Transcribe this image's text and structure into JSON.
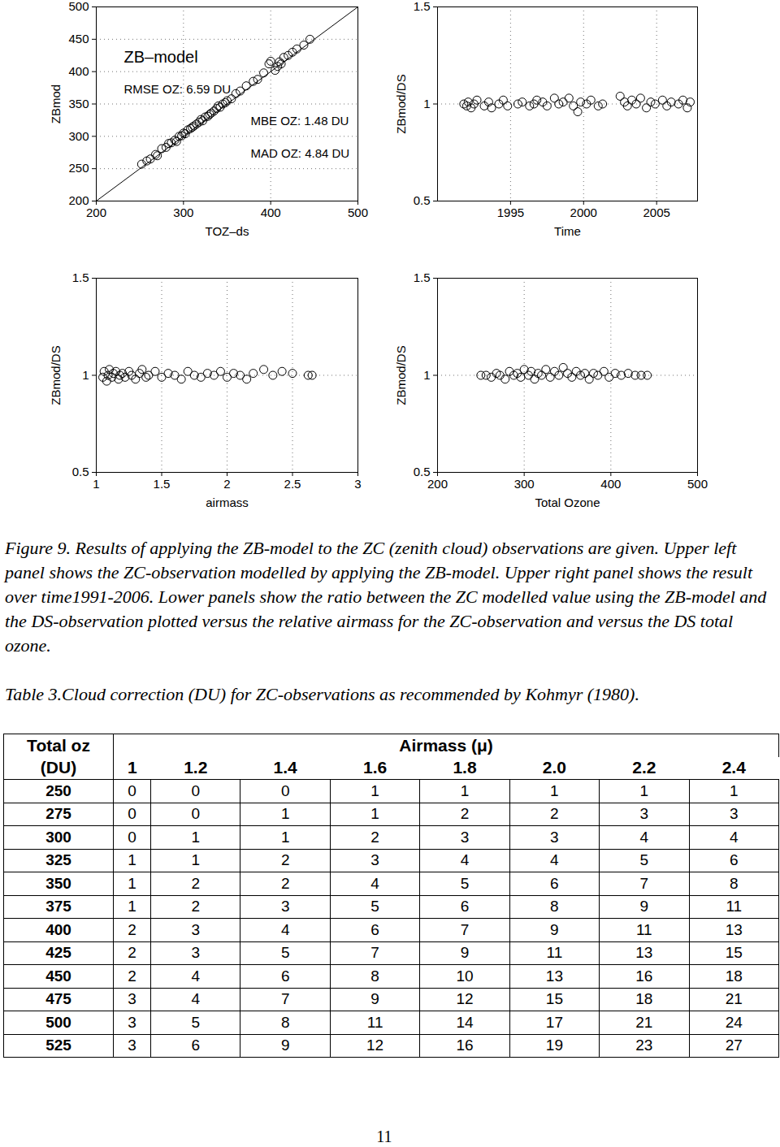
{
  "chart_data": [
    {
      "type": "scatter",
      "x_label": "TOZ–ds",
      "y_label": "ZBmod",
      "annotations": [
        "ZB–model",
        "RMSE OZ: 6.59 DU",
        "MBE OZ: 1.48 DU",
        "MAD OZ: 4.84 DU"
      ],
      "xlim": [
        200,
        500
      ],
      "ylim": [
        200,
        500
      ],
      "xticks": [
        200,
        300,
        400,
        500
      ],
      "yticks": [
        200,
        250,
        300,
        350,
        400,
        450,
        500
      ],
      "grid": true,
      "marker": "circle",
      "color": "#000000",
      "reference_line": {
        "x": [
          200,
          500
        ],
        "values": [
          200,
          500
        ]
      },
      "x": [
        252,
        258,
        262,
        268,
        270,
        275,
        280,
        283,
        286,
        290,
        292,
        295,
        298,
        300,
        302,
        305,
        308,
        310,
        312,
        315,
        318,
        320,
        322,
        325,
        328,
        330,
        332,
        335,
        338,
        340,
        342,
        345,
        348,
        350,
        355,
        360,
        365,
        372,
        380,
        385,
        392,
        398,
        400,
        405,
        408,
        410,
        412,
        415,
        420,
        425,
        430,
        438,
        445
      ],
      "values": [
        257,
        262,
        265,
        272,
        270,
        281,
        283,
        289,
        290,
        294,
        292,
        300,
        301,
        305,
        304,
        310,
        312,
        314,
        316,
        319,
        322,
        326,
        324,
        330,
        331,
        334,
        336,
        339,
        343,
        347,
        345,
        350,
        352,
        355,
        358,
        366,
        370,
        378,
        385,
        388,
        398,
        412,
        416,
        402,
        408,
        415,
        412,
        422,
        425,
        430,
        435,
        441,
        450
      ]
    },
    {
      "type": "scatter",
      "x_label": "Time",
      "y_label": "ZBmod/DS",
      "xlim": [
        1990,
        2007.8
      ],
      "ylim": [
        0.5,
        1.5
      ],
      "xticks": [
        1995,
        2000,
        2005
      ],
      "yticks": [
        0.5,
        1,
        1.5
      ],
      "grid": true,
      "marker": "circle",
      "color": "#000000",
      "x": [
        1991.8,
        1992.0,
        1992.1,
        1992.3,
        1992.5,
        1992.7,
        1993.2,
        1993.5,
        1993.7,
        1994.2,
        1994.5,
        1994.8,
        1995.5,
        1995.8,
        1996.3,
        1996.6,
        1996.8,
        1997.2,
        1997.5,
        1998.0,
        1998.3,
        1998.6,
        1999.0,
        1999.3,
        1999.6,
        1999.8,
        2000.2,
        2000.5,
        2001.0,
        2001.3,
        2002.5,
        2002.8,
        2003.0,
        2003.3,
        2003.6,
        2003.9,
        2004.3,
        2004.6,
        2004.9,
        2005.4,
        2005.7,
        2006.0,
        2006.5,
        2006.8,
        2007.1,
        2007.3
      ],
      "values": [
        1.0,
        0.99,
        1.01,
        0.98,
        1.0,
        1.02,
        0.99,
        1.01,
        0.98,
        1.0,
        1.02,
        0.99,
        1.0,
        1.01,
        0.99,
        1.0,
        1.02,
        1.01,
        0.99,
        1.03,
        1.0,
        1.01,
        1.03,
        0.99,
        0.96,
        1.01,
        1.0,
        1.02,
        0.99,
        1.0,
        1.04,
        1.01,
        0.99,
        1.02,
        1.0,
        1.03,
        0.98,
        1.01,
        1.0,
        1.02,
        0.99,
        1.01,
        1.0,
        1.02,
        0.98,
        1.01
      ]
    },
    {
      "type": "scatter",
      "x_label": "airmass",
      "y_label": "ZBmod/DS",
      "xlim": [
        1,
        3
      ],
      "ylim": [
        0.5,
        1.5
      ],
      "xticks": [
        1,
        1.5,
        2,
        2.5,
        3
      ],
      "yticks": [
        0.5,
        1,
        1.5
      ],
      "grid": true,
      "marker": "circle",
      "color": "#000000",
      "x": [
        1.05,
        1.06,
        1.08,
        1.09,
        1.1,
        1.12,
        1.13,
        1.15,
        1.17,
        1.18,
        1.2,
        1.22,
        1.25,
        1.27,
        1.3,
        1.33,
        1.35,
        1.38,
        1.4,
        1.45,
        1.5,
        1.55,
        1.6,
        1.65,
        1.7,
        1.75,
        1.8,
        1.85,
        1.9,
        1.95,
        2.0,
        2.05,
        2.1,
        2.15,
        2.2,
        2.28,
        2.35,
        2.42,
        2.5,
        2.62,
        2.65
      ],
      "values": [
        0.99,
        1.02,
        0.97,
        1.0,
        1.03,
        0.99,
        1.01,
        1.02,
        0.98,
        1.0,
        1.01,
        0.99,
        1.02,
        1.0,
        0.98,
        1.01,
        1.03,
        0.99,
        1.0,
        1.02,
        0.99,
        1.01,
        1.0,
        0.98,
        1.02,
        1.0,
        0.99,
        1.01,
        1.0,
        1.02,
        0.99,
        1.01,
        1.0,
        0.98,
        1.01,
        1.03,
        1.0,
        1.02,
        1.01,
        1.0,
        1.0
      ]
    },
    {
      "type": "scatter",
      "x_label": "Total Ozone",
      "y_label": "ZBmod/DS",
      "xlim": [
        200,
        500
      ],
      "ylim": [
        0.5,
        1.5
      ],
      "xticks": [
        200,
        300,
        400,
        500
      ],
      "yticks": [
        0.5,
        1,
        1.5
      ],
      "grid": true,
      "marker": "circle",
      "color": "#000000",
      "x": [
        250,
        256,
        262,
        268,
        272,
        278,
        283,
        288,
        292,
        296,
        300,
        305,
        308,
        312,
        316,
        320,
        325,
        330,
        335,
        340,
        345,
        350,
        355,
        360,
        365,
        370,
        375,
        380,
        385,
        392,
        398,
        405,
        412,
        420,
        428,
        435,
        442
      ],
      "values": [
        1.0,
        1.0,
        0.99,
        1.01,
        1.0,
        0.98,
        1.02,
        1.0,
        1.01,
        0.99,
        1.03,
        1.0,
        1.02,
        0.98,
        1.01,
        1.0,
        1.03,
        0.99,
        1.02,
        1.0,
        1.04,
        1.01,
        0.99,
        1.02,
        1.0,
        1.01,
        0.98,
        1.01,
        1.0,
        1.02,
        0.99,
        1.01,
        1.0,
        1.01,
        1.0,
        1.0,
        1.0
      ]
    }
  ],
  "caption": "Figure 9. Results of applying the ZB-model to the ZC (zenith cloud) observations are given. Upper left panel shows the ZC-observation modelled by applying the ZB-model. Upper right panel shows the result over time1991-2006. Lower panels show the ratio between the ZC modelled value using the ZB-model and the DS-observation plotted versus the relative airmass for the ZC-observation and versus the DS total ozone.",
  "table": {
    "caption": "Table 3.Cloud correction (DU) for ZC-observations as recommended by Kohmyr (1980).",
    "header": [
      "Total oz",
      "Airmass (μ)"
    ],
    "subheader": [
      "(DU)",
      "1",
      "1.2",
      "1.4",
      "1.6",
      "1.8",
      "2.0",
      "2.2",
      "2.4"
    ],
    "rows": [
      [
        250,
        0,
        0,
        0,
        1,
        1,
        1,
        1,
        1
      ],
      [
        275,
        0,
        0,
        1,
        1,
        2,
        2,
        3,
        3
      ],
      [
        300,
        0,
        1,
        1,
        2,
        3,
        3,
        4,
        4
      ],
      [
        325,
        1,
        1,
        2,
        3,
        4,
        4,
        5,
        6
      ],
      [
        350,
        1,
        2,
        2,
        4,
        5,
        6,
        7,
        8
      ],
      [
        375,
        1,
        2,
        3,
        5,
        6,
        8,
        9,
        11
      ],
      [
        400,
        2,
        3,
        4,
        6,
        7,
        9,
        11,
        13
      ],
      [
        425,
        2,
        3,
        5,
        7,
        9,
        11,
        13,
        15
      ],
      [
        450,
        2,
        4,
        6,
        8,
        10,
        13,
        16,
        18
      ],
      [
        475,
        3,
        4,
        7,
        9,
        12,
        15,
        18,
        21
      ],
      [
        500,
        3,
        5,
        8,
        11,
        14,
        17,
        21,
        24
      ],
      [
        525,
        3,
        6,
        9,
        12,
        16,
        19,
        23,
        27
      ]
    ]
  },
  "page_number": "11"
}
